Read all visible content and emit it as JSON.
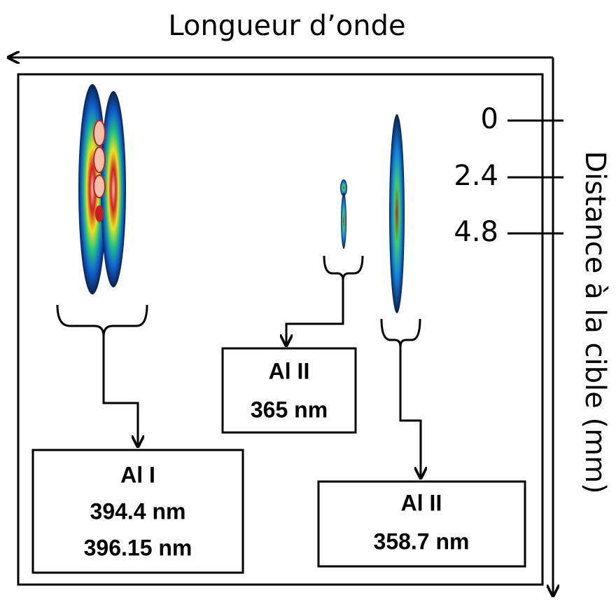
{
  "axes": {
    "horizontal_label": "Longueur d’onde",
    "vertical_label": "Distance à la cible (mm)",
    "ticks": [
      "0",
      "2.4",
      "4.8"
    ]
  },
  "labels": [
    {
      "lines": [
        "Al I",
        "394.4 nm",
        "396.15 nm"
      ]
    },
    {
      "lines": [
        "Al II",
        "365 nm"
      ]
    },
    {
      "lines": [
        "Al II",
        "358.7 nm"
      ]
    }
  ]
}
